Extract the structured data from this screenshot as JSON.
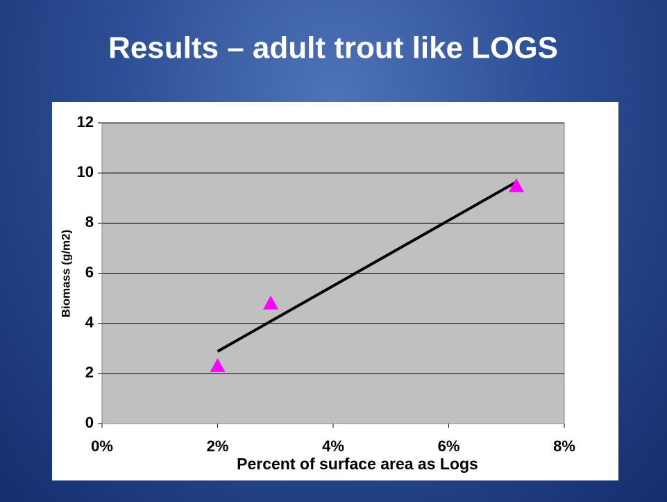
{
  "chart_data": {
    "type": "scatter",
    "title": "Results – adult trout like LOGS",
    "x_label": "Percent of surface area as Logs",
    "y_label": "Biomass (g/m2)",
    "series": [
      {
        "name": "Biomass",
        "color": "#ff00ff",
        "marker": "triangle",
        "x": [
          2.0,
          2.92,
          7.17
        ],
        "values": [
          2.3,
          4.8,
          9.48
        ]
      }
    ],
    "trendline": {
      "color": "#000000",
      "x": [
        2.0,
        7.17
      ],
      "y": [
        2.88,
        9.64
      ]
    },
    "xlim": [
      0,
      8
    ],
    "xticks": [
      {
        "value": 0,
        "label": "0%"
      },
      {
        "value": 2,
        "label": "2%"
      },
      {
        "value": 4,
        "label": "4%"
      },
      {
        "value": 6,
        "label": "6%"
      },
      {
        "value": 8,
        "label": "8%"
      }
    ],
    "ylim": [
      0,
      12
    ],
    "yticks": [
      0,
      2,
      4,
      6,
      8,
      10,
      12
    ],
    "grid": true,
    "plot_background": "#c0c0c0"
  }
}
